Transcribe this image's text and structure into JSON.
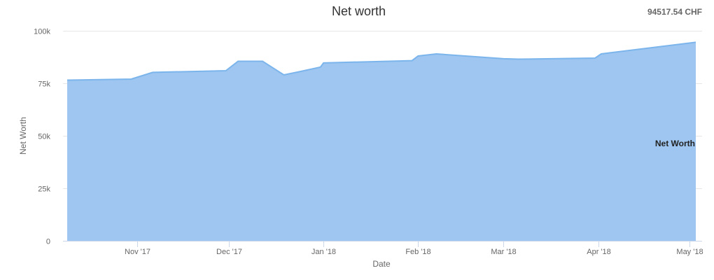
{
  "header": {
    "title": "Net worth",
    "total": "94517.54 CHF"
  },
  "colors": {
    "area_fill": "#9ec6f0",
    "area_line": "#7cb5ec",
    "grid": "#e6e6e6"
  },
  "chart_data": {
    "type": "area",
    "title": "Net worth",
    "xlabel": "Date",
    "ylabel": "Net Worth",
    "ylim": [
      0,
      100000
    ],
    "y_ticks": [
      0,
      25000,
      50000,
      75000,
      100000
    ],
    "y_tick_labels": [
      "0",
      "25k",
      "50k",
      "75k",
      "100k"
    ],
    "x_range": [
      "2017-10-09",
      "2018-05-03"
    ],
    "x_ticks": [
      "2017-11-01",
      "2017-12-01",
      "2018-01-01",
      "2018-02-01",
      "2018-03-01",
      "2018-04-01",
      "2018-05-01"
    ],
    "x_tick_labels": [
      "Nov '17",
      "Dec '17",
      "Jan '18",
      "Feb '18",
      "Mar '18",
      "Apr '18",
      "May '18"
    ],
    "grid": true,
    "series": [
      {
        "name": "Net Worth",
        "x": [
          "2017-10-09",
          "2017-10-30",
          "2017-11-06",
          "2017-11-30",
          "2017-12-04",
          "2017-12-12",
          "2017-12-19",
          "2017-12-24",
          "2017-12-31",
          "2018-01-01",
          "2018-01-30",
          "2018-02-01",
          "2018-02-07",
          "2018-03-01",
          "2018-03-06",
          "2018-03-31",
          "2018-04-02",
          "2018-05-03"
        ],
        "y": [
          76500,
          77000,
          80200,
          81000,
          85500,
          85500,
          79000,
          80500,
          82700,
          84700,
          85800,
          88000,
          89000,
          86700,
          86500,
          87000,
          89000,
          94517.54
        ]
      }
    ],
    "series_label": "Net Worth"
  }
}
